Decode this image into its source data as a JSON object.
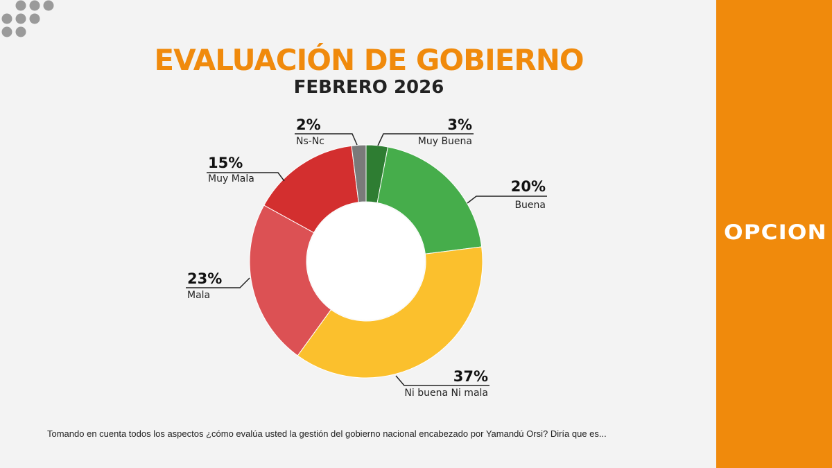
{
  "colors": {
    "background": "#f3f3f3",
    "accent": "#f08a0c",
    "dots": "#9a9a9a"
  },
  "brand": {
    "name": "OPCION"
  },
  "footnote": "Tomando en cuenta todos los aspectos ¿cómo evalúa usted la gestión del gobierno nacional encabezado por Yamandú Orsi? Diría que es...",
  "chart_data": {
    "type": "pie",
    "variant": "donut",
    "title": "EVALUACIÓN DE GOBIERNO",
    "subtitle": "FEBRERO 2026",
    "unit": "%",
    "slices": [
      {
        "label": "Muy Buena",
        "value": 3,
        "color": "#2e7d32"
      },
      {
        "label": "Buena",
        "value": 20,
        "color": "#46ad4b"
      },
      {
        "label": "Ni buena Ni mala",
        "value": 37,
        "color": "#fbc02d"
      },
      {
        "label": "Mala",
        "value": 23,
        "color": "#dc5154"
      },
      {
        "label": "Muy Mala",
        "value": 15,
        "color": "#d32f2f"
      },
      {
        "label": "Ns-Nc",
        "value": 2,
        "color": "#7a7a7a"
      }
    ]
  }
}
